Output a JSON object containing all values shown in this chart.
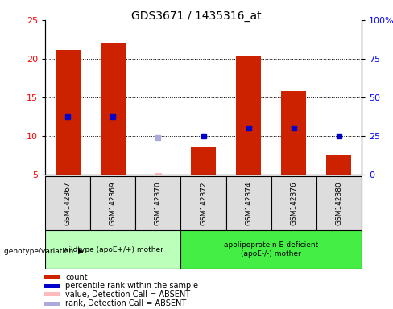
{
  "title": "GDS3671 / 1435316_at",
  "samples": [
    "GSM142367",
    "GSM142369",
    "GSM142370",
    "GSM142372",
    "GSM142374",
    "GSM142376",
    "GSM142380"
  ],
  "count_values": [
    21.1,
    22.0,
    null,
    8.5,
    20.3,
    15.8,
    7.5
  ],
  "rank_values": [
    37.5,
    37.5,
    null,
    25.0,
    30.0,
    30.0,
    25.0
  ],
  "absent_rank": [
    null,
    null,
    24.0,
    null,
    null,
    null,
    null
  ],
  "absent_count": [
    null,
    null,
    5.2,
    null,
    null,
    null,
    null
  ],
  "ylim_left": [
    5,
    25
  ],
  "ylim_right": [
    0,
    100
  ],
  "yticks_left": [
    5,
    10,
    15,
    20,
    25
  ],
  "ytick_labels_right": [
    "0",
    "25",
    "50",
    "75",
    "100%"
  ],
  "groups": [
    {
      "label": "wildtype (apoE+/+) mother",
      "indices": [
        0,
        1,
        2
      ],
      "color": "#bbffbb"
    },
    {
      "label": "apolipoprotein E-deficient\n(apoE-/-) mother",
      "indices": [
        3,
        4,
        5,
        6
      ],
      "color": "#44ee44"
    }
  ],
  "bar_color": "#cc2200",
  "rank_color": "#0000cc",
  "absent_rank_color": "#aaaadd",
  "absent_count_color": "#ffbbbb",
  "bar_width": 0.55,
  "legend_items": [
    {
      "label": "count",
      "color": "#cc2200"
    },
    {
      "label": "percentile rank within the sample",
      "color": "#0000cc"
    },
    {
      "label": "value, Detection Call = ABSENT",
      "color": "#ffbbbb"
    },
    {
      "label": "rank, Detection Call = ABSENT",
      "color": "#aaaadd"
    }
  ]
}
